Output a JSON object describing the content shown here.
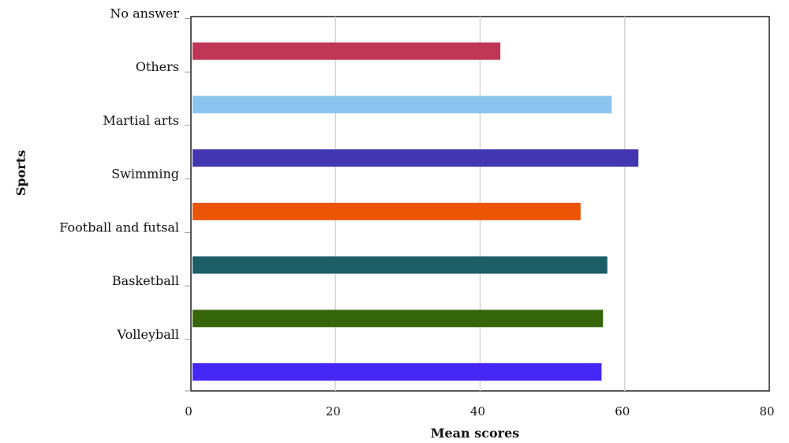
{
  "chart_data": {
    "type": "bar",
    "orientation": "horizontal",
    "categories": [
      "Volleyball",
      "Basketball",
      "Football and futsal",
      "Swimming",
      "Martial arts",
      "Others",
      "No answer"
    ],
    "values": [
      56.8,
      57.0,
      57.6,
      53.9,
      61.9,
      58.2,
      42.8
    ],
    "colors": [
      "#4527f5",
      "#35660a",
      "#1b5e67",
      "#ec5406",
      "#4237b0",
      "#8ac4ef",
      "#bf3656"
    ],
    "xlabel": "Mean scores",
    "ylabel": "Sports",
    "xlim": [
      0,
      80
    ],
    "xticks": [
      "0",
      "20",
      "40",
      "60",
      "80"
    ],
    "grid": "vertical",
    "legend": "none"
  }
}
